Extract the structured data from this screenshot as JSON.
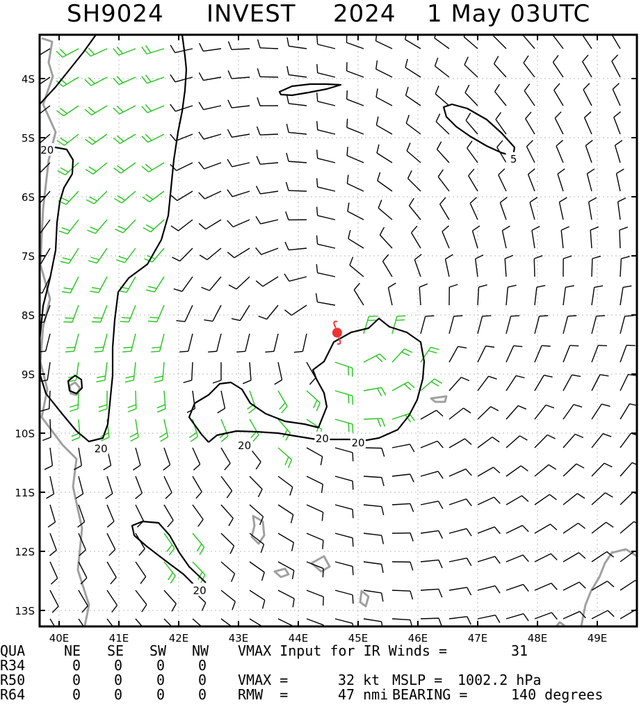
{
  "title": {
    "storm_id": "SH9024",
    "storm_name": "INVEST",
    "year": "2024",
    "datetime": "1 May 03UTC"
  },
  "chart_data": {
    "type": "wind-barb-map",
    "x_ticks": [
      "40E",
      "41E",
      "42E",
      "43E",
      "44E",
      "45E",
      "46E",
      "47E",
      "48E",
      "49E"
    ],
    "y_ticks": [
      "4S",
      "5S",
      "6S",
      "7S",
      "8S",
      "9S",
      "10S",
      "11S",
      "12S",
      "13S"
    ],
    "xlim": [
      39.6,
      50.0
    ],
    "ylim": [
      -13.1,
      -3.6
    ],
    "grid": true,
    "storm_center": {
      "lon": 44.65,
      "lat": -8.3
    },
    "contour_labels": [
      {
        "text": "20",
        "lon": 39.8,
        "lat": -5.2
      },
      {
        "text": "20",
        "lon": 40.7,
        "lat": -10.25
      },
      {
        "text": "20",
        "lon": 43.1,
        "lat": -10.2
      },
      {
        "text": "20",
        "lon": 44.4,
        "lat": -10.08
      },
      {
        "text": "20",
        "lon": 45.0,
        "lat": -10.15
      },
      {
        "text": "20",
        "lon": 42.35,
        "lat": -12.65
      },
      {
        "text": "5",
        "lon": 47.6,
        "lat": -5.35
      }
    ],
    "colors": {
      "barb_weak": "#000000",
      "barb_strong": "#22c41a",
      "land": "#a0a0a0",
      "contour": "#000000",
      "storm": "#ee3333"
    }
  },
  "footer": {
    "header": [
      "QUA",
      "NE",
      "SE",
      "SW",
      "NW"
    ],
    "rows": [
      {
        "label": "R34",
        "values": [
          "0",
          "0",
          "0",
          "0"
        ]
      },
      {
        "label": "R50",
        "values": [
          "0",
          "0",
          "0",
          "0"
        ]
      },
      {
        "label": "R64",
        "values": [
          "0",
          "0",
          "0",
          "0"
        ]
      }
    ],
    "ir_label": "VMAX Input for IR Winds =",
    "ir_value": "31",
    "vmax_label": "VMAX =",
    "vmax_value": "32 kt",
    "mslp_label": "MSLP =",
    "mslp_value": "1002.2 hPa",
    "rmw_label": "RMW  =",
    "rmw_value": "47 nmi",
    "bearing_label": "BEARING =",
    "bearing_value": "140 degrees"
  }
}
